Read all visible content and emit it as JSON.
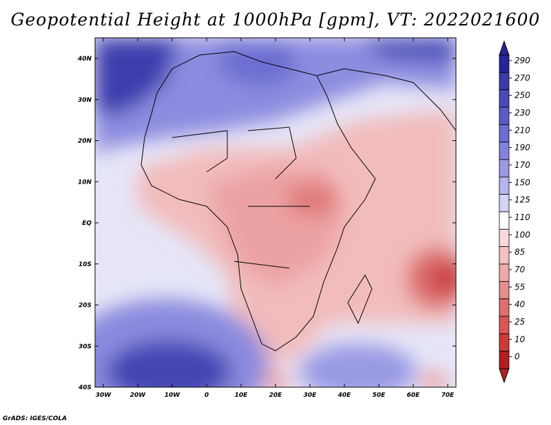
{
  "title": "Geopotential Height at 1000hPa [gpm], VT: 2022021600",
  "credit": "GrADS: IGES/COLA",
  "map": {
    "lon_ticks": [
      "30W",
      "20W",
      "10W",
      "0",
      "10E",
      "20E",
      "30E",
      "40E",
      "50E",
      "60E",
      "70E"
    ],
    "lat_ticks": [
      "40N",
      "30N",
      "20N",
      "10N",
      "EQ",
      "10S",
      "20S",
      "30S",
      "40S"
    ]
  },
  "colorbar": {
    "levels": [
      "290",
      "270",
      "250",
      "230",
      "210",
      "190",
      "170",
      "150",
      "125",
      "110",
      "100",
      "85",
      "70",
      "55",
      "40",
      "25",
      "10",
      "0"
    ],
    "colors": [
      "#262698",
      "#3a3aa8",
      "#4b4bb8",
      "#5b5bc6",
      "#6e6ed2",
      "#8282dc",
      "#9a9ae4",
      "#b6b6ee",
      "#d4d4f6",
      "#ffffff",
      "#f9dada",
      "#f4c2c2",
      "#eeaaaa",
      "#e68e8e",
      "#df7070",
      "#d85656",
      "#cc3a3a",
      "#b02020"
    ]
  }
}
